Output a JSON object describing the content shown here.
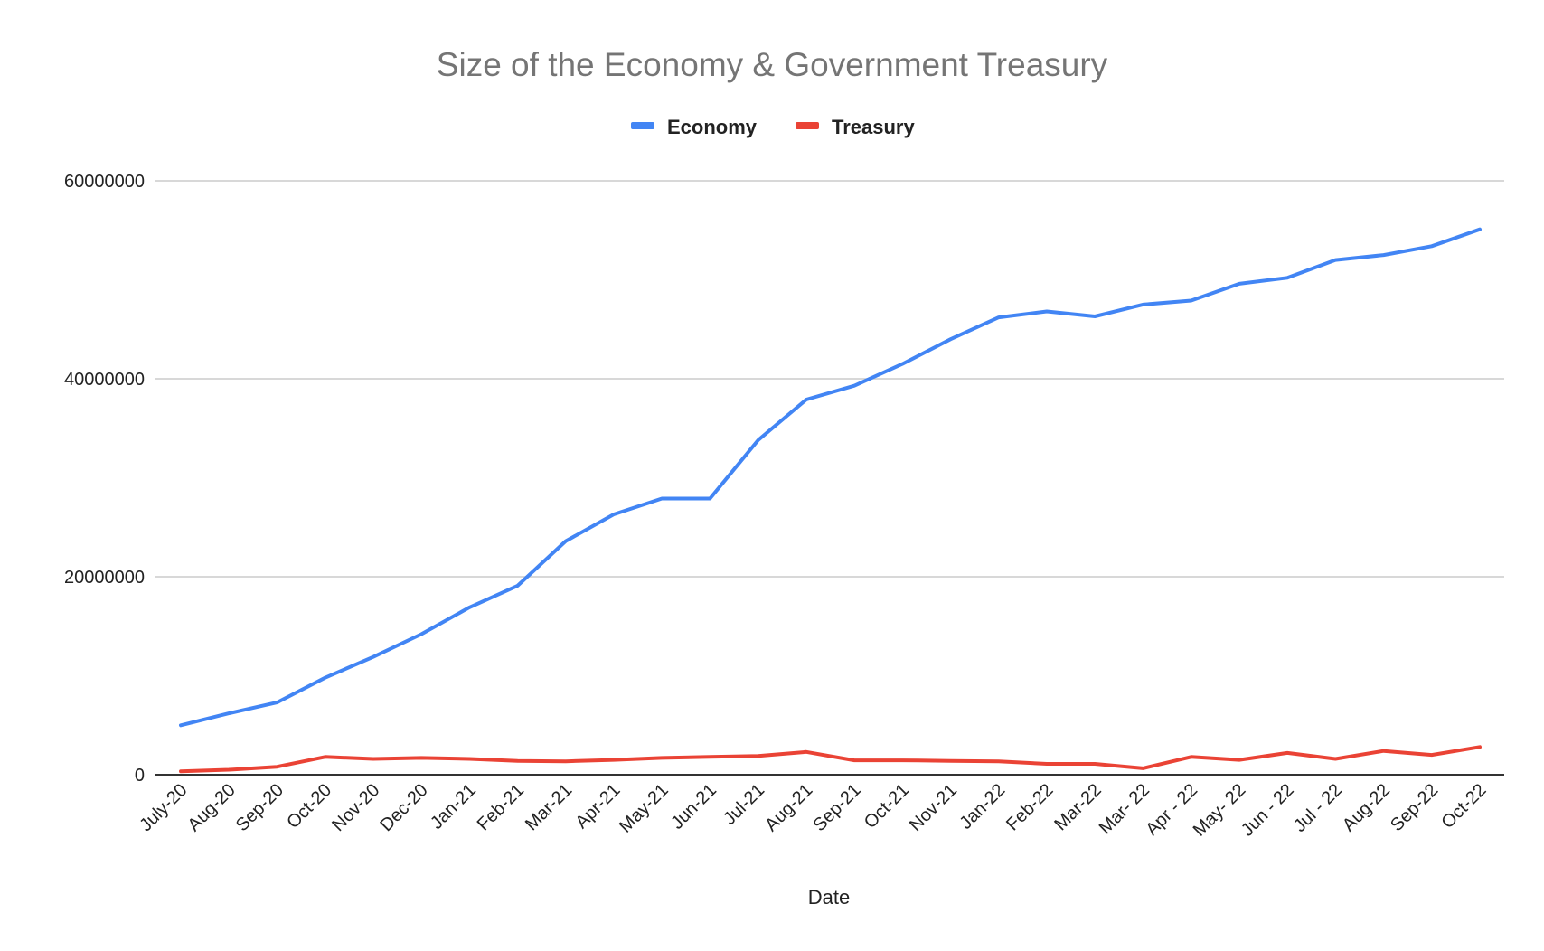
{
  "chart_data": {
    "type": "line",
    "title": "Size of the Economy & Government Treasury",
    "xlabel": "Date",
    "ylabel": "",
    "ylim": [
      0,
      60000000
    ],
    "yticks": [
      0,
      20000000,
      40000000,
      60000000
    ],
    "ytick_labels": [
      "0",
      "20000000",
      "40000000",
      "60000000"
    ],
    "grid": true,
    "legend_position": "top",
    "categories": [
      "July-20",
      "Aug-20",
      "Sep-20",
      "Oct-20",
      "Nov-20",
      "Dec-20",
      "Jan-21",
      "Feb-21",
      "Mar-21",
      "Apr-21",
      "May-21",
      "Jun-21",
      "Jul-21",
      "Aug-21",
      "Sep-21",
      "Oct-21",
      "Nov-21",
      "Jan-22",
      "Feb-22",
      "Mar-22",
      "Mar- 22",
      "Apr - 22",
      "May- 22",
      "Jun - 22",
      "Jul - 22",
      "Aug-22",
      "Sep-22",
      "Oct-22"
    ],
    "series": [
      {
        "name": "Economy",
        "color": "#4285f4",
        "values": [
          5000000,
          6200000,
          7300000,
          9800000,
          11900000,
          14200000,
          16900000,
          19100000,
          23600000,
          26300000,
          27900000,
          27900000,
          33800000,
          37900000,
          39300000,
          41500000,
          44000000,
          46200000,
          46800000,
          46300000,
          47500000,
          47900000,
          49600000,
          50200000,
          52000000,
          52500000,
          53400000,
          55100000
        ]
      },
      {
        "name": "Treasury",
        "color": "#ea4335",
        "values": [
          350000,
          500000,
          800000,
          1800000,
          1600000,
          1700000,
          1600000,
          1400000,
          1350000,
          1500000,
          1700000,
          1800000,
          1900000,
          2300000,
          1450000,
          1450000,
          1400000,
          1350000,
          1100000,
          1100000,
          650000,
          1800000,
          1500000,
          2200000,
          1600000,
          2400000,
          2000000,
          2800000
        ]
      }
    ]
  }
}
